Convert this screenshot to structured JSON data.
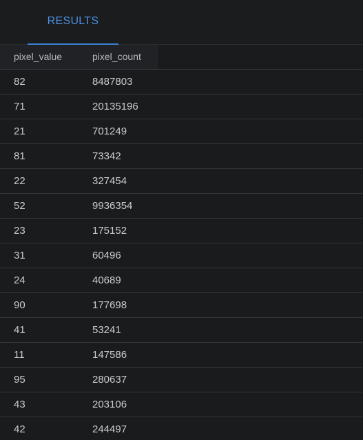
{
  "tabs": [
    {
      "label": "RESULTS"
    }
  ],
  "table": {
    "columns": [
      "pixel_value",
      "pixel_count"
    ],
    "rows": [
      [
        "82",
        "8487803"
      ],
      [
        "71",
        "20135196"
      ],
      [
        "21",
        "701249"
      ],
      [
        "81",
        "73342"
      ],
      [
        "22",
        "327454"
      ],
      [
        "52",
        "9936354"
      ],
      [
        "23",
        "175152"
      ],
      [
        "31",
        "60496"
      ],
      [
        "24",
        "40689"
      ],
      [
        "90",
        "177698"
      ],
      [
        "41",
        "53241"
      ],
      [
        "11",
        "147586"
      ],
      [
        "95",
        "280637"
      ],
      [
        "43",
        "203106"
      ],
      [
        "42",
        "244497"
      ]
    ]
  },
  "colors": {
    "background": "#1a1b1d",
    "accent": "#4a90e2",
    "row_divider": "#34363a"
  }
}
